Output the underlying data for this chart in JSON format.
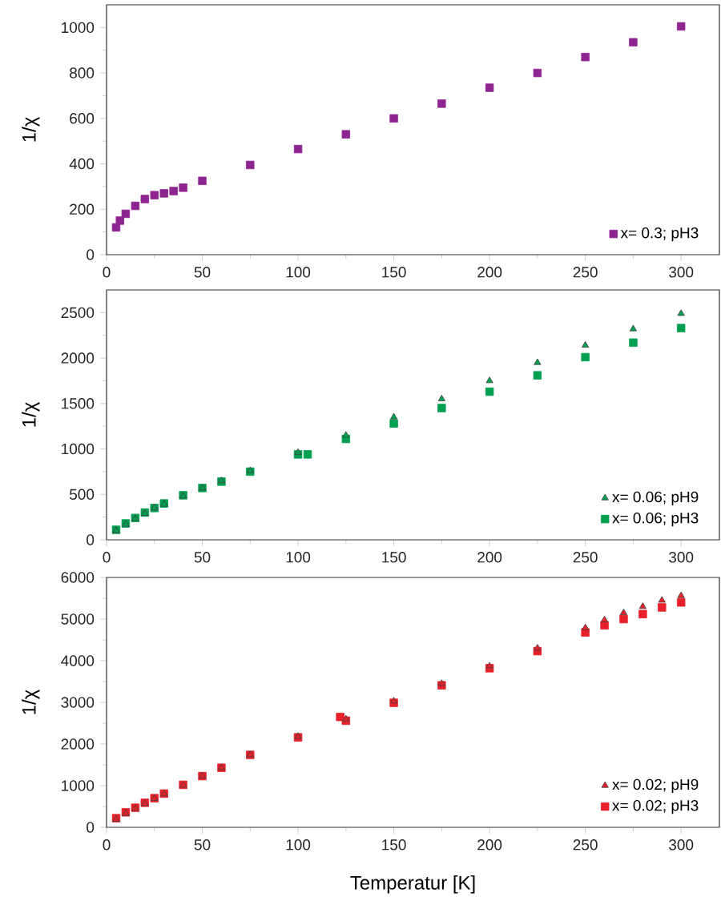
{
  "chart_data": [
    {
      "type": "scatter",
      "ylabel": "1/χ",
      "xlim": [
        0,
        320
      ],
      "xticks": [
        0,
        50,
        100,
        150,
        200,
        250,
        300
      ],
      "ylim": [
        0,
        1100
      ],
      "yticks": [
        0,
        200,
        400,
        600,
        800,
        1000
      ],
      "legend": "bottom right",
      "series": [
        {
          "name": "x= 0.3; pH3",
          "color": "#8e2490",
          "marker": "square",
          "x": [
            5,
            7,
            10,
            15,
            20,
            25,
            30,
            35,
            40,
            50,
            75,
            100,
            125,
            150,
            175,
            200,
            225,
            250,
            275,
            300
          ],
          "values": [
            120,
            150,
            180,
            215,
            245,
            262,
            270,
            280,
            295,
            325,
            395,
            465,
            530,
            600,
            665,
            735,
            800,
            870,
            935,
            1005
          ]
        }
      ]
    },
    {
      "type": "scatter",
      "ylabel": "1/χ",
      "xlim": [
        0,
        320
      ],
      "xticks": [
        0,
        50,
        100,
        150,
        200,
        250,
        300
      ],
      "ylim": [
        0,
        2750
      ],
      "yticks": [
        0,
        500,
        1000,
        1500,
        2000,
        2500
      ],
      "legend": "bottom right",
      "series": [
        {
          "name": "x= 0.06; pH9",
          "color": "#00a050",
          "marker": "triangle",
          "x": [
            5,
            10,
            15,
            20,
            25,
            30,
            40,
            50,
            60,
            75,
            100,
            125,
            150,
            175,
            200,
            225,
            250,
            275,
            300
          ],
          "values": [
            100,
            170,
            230,
            290,
            350,
            390,
            480,
            570,
            650,
            760,
            960,
            1150,
            1350,
            1550,
            1750,
            1950,
            2140,
            2320,
            2490
          ]
        },
        {
          "name": "x= 0.06; pH3",
          "color": "#00a050",
          "marker": "square",
          "x": [
            5,
            10,
            15,
            20,
            25,
            30,
            40,
            50,
            60,
            75,
            100,
            105,
            125,
            150,
            175,
            200,
            225,
            250,
            275,
            300
          ],
          "values": [
            110,
            180,
            240,
            300,
            350,
            400,
            490,
            570,
            640,
            750,
            940,
            940,
            1110,
            1280,
            1450,
            1630,
            1810,
            2010,
            2170,
            2330
          ]
        }
      ]
    },
    {
      "type": "scatter",
      "ylabel": "1/χ",
      "xlabel": "Temperatur [K]",
      "xlim": [
        0,
        320
      ],
      "xticks": [
        0,
        50,
        100,
        150,
        200,
        250,
        300
      ],
      "ylim": [
        0,
        6000
      ],
      "yticks": [
        0,
        1000,
        2000,
        3000,
        4000,
        5000,
        6000
      ],
      "legend": "bottom right",
      "series": [
        {
          "name": "x= 0.02; pH9",
          "color": "#e8202a",
          "marker": "triangle",
          "x": [
            5,
            10,
            15,
            20,
            25,
            30,
            40,
            50,
            60,
            75,
            100,
            125,
            150,
            175,
            200,
            225,
            250,
            260,
            270,
            280,
            290,
            300
          ],
          "values": [
            190,
            330,
            450,
            570,
            690,
            800,
            1010,
            1230,
            1430,
            1740,
            2180,
            2600,
            3030,
            3450,
            3870,
            4300,
            4790,
            4980,
            5150,
            5300,
            5450,
            5560
          ]
        },
        {
          "name": "x= 0.02; pH3",
          "color": "#e8202a",
          "marker": "square",
          "x": [
            5,
            10,
            15,
            20,
            25,
            30,
            40,
            50,
            60,
            75,
            100,
            122,
            125,
            150,
            175,
            200,
            225,
            250,
            260,
            270,
            280,
            290,
            300
          ],
          "values": [
            220,
            360,
            470,
            590,
            700,
            810,
            1020,
            1230,
            1430,
            1740,
            2160,
            2650,
            2560,
            2990,
            3410,
            3820,
            4230,
            4680,
            4850,
            5000,
            5120,
            5280,
            5400
          ]
        }
      ]
    }
  ]
}
